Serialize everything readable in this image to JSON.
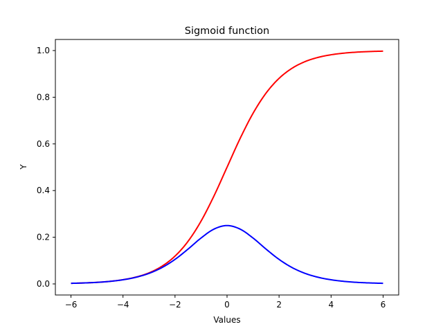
{
  "chart_data": {
    "type": "line",
    "title": "Sigmoid function",
    "xlabel": "Values",
    "ylabel": "Y",
    "xlim": [
      -6.6,
      6.6
    ],
    "ylim": [
      -0.0475,
      1.0475
    ],
    "grid": false,
    "x_ticks": [
      -6,
      -4,
      -2,
      0,
      2,
      4,
      6
    ],
    "x_tick_labels": [
      "−6",
      "−4",
      "−2",
      "0",
      "2",
      "4",
      "6"
    ],
    "y_ticks": [
      0.0,
      0.2,
      0.4,
      0.6,
      0.8,
      1.0
    ],
    "y_tick_labels": [
      "0.0",
      "0.2",
      "0.4",
      "0.6",
      "0.8",
      "1.0"
    ],
    "x": [
      -6,
      -5.5,
      -5,
      -4.5,
      -4,
      -3.5,
      -3,
      -2.5,
      -2,
      -1.5,
      -1,
      -0.5,
      0,
      0.5,
      1,
      1.5,
      2,
      2.5,
      3,
      3.5,
      4,
      4.5,
      5,
      5.5,
      6
    ],
    "series": [
      {
        "color": "#ff0000",
        "values": [
          0.0025,
          0.0041,
          0.0067,
          0.011,
          0.018,
          0.0293,
          0.0474,
          0.0759,
          0.1192,
          0.1824,
          0.2689,
          0.3775,
          0.5,
          0.6225,
          0.7311,
          0.8176,
          0.8808,
          0.9241,
          0.9526,
          0.9707,
          0.982,
          0.989,
          0.9933,
          0.9959,
          0.9975
        ]
      },
      {
        "color": "#0000ff",
        "values": [
          0.0025,
          0.0041,
          0.0066,
          0.0109,
          0.0177,
          0.0285,
          0.0452,
          0.0701,
          0.105,
          0.1491,
          0.1966,
          0.235,
          0.25,
          0.235,
          0.1966,
          0.1491,
          0.105,
          0.0701,
          0.0452,
          0.0285,
          0.0177,
          0.0109,
          0.0066,
          0.0041,
          0.0025
        ]
      }
    ]
  }
}
